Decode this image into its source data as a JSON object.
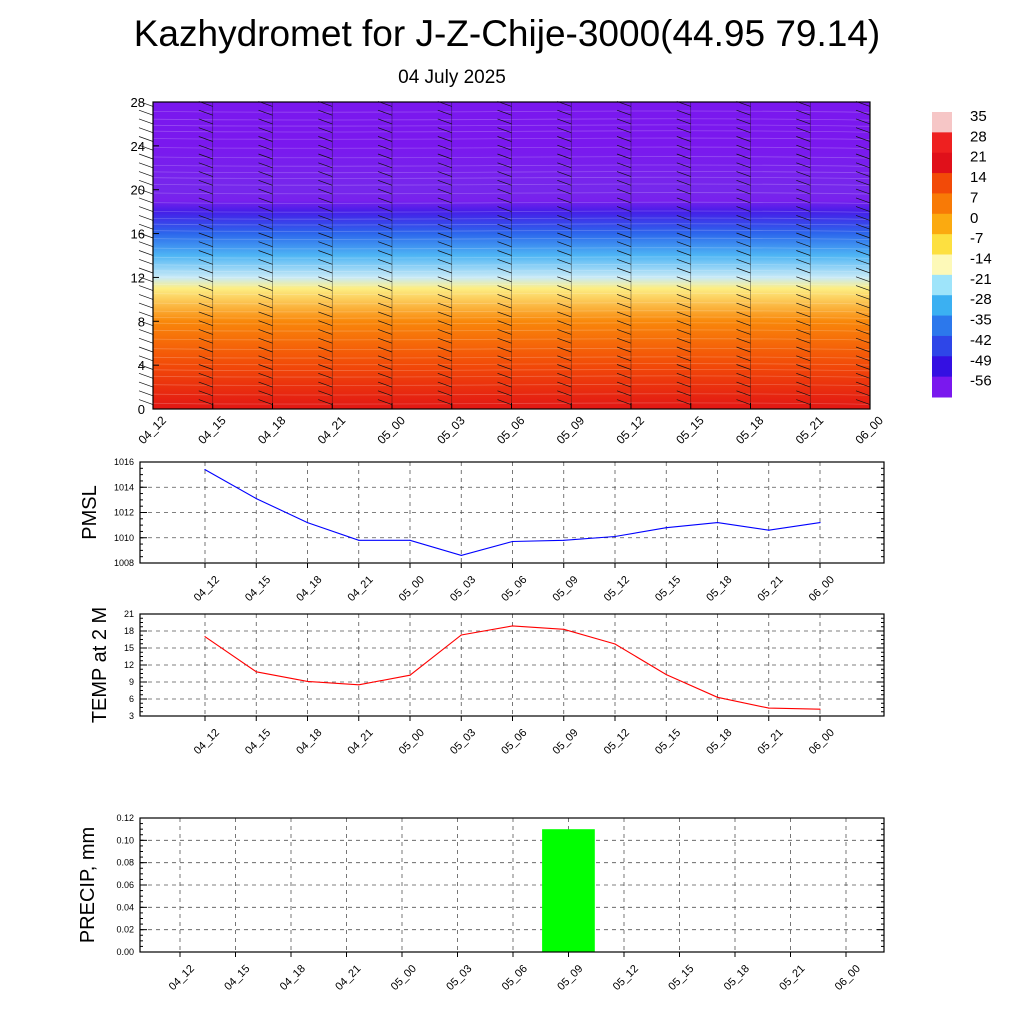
{
  "page": {
    "title": "Kazhydromet for J-Z-Chije-3000(44.95 79.14)",
    "subtitle": "04 July 2025"
  },
  "colorbar": {
    "labels": [
      "35",
      "28",
      "21",
      "14",
      "7",
      "0",
      "-7",
      "-14",
      "-21",
      "-28",
      "-35",
      "-42",
      "-49",
      "-56"
    ],
    "colors": [
      "#f6c6c6",
      "#ee2020",
      "#e0101a",
      "#f24a08",
      "#f87a06",
      "#fbaa10",
      "#fde040",
      "#fdf9b8",
      "#9ee4fa",
      "#3bb0f2",
      "#2c78ec",
      "#2e46e8",
      "#3410e2",
      "#7a18ee"
    ]
  },
  "chart_data": [
    {
      "type": "heatmap",
      "id": "temperature-cross-section",
      "title": "",
      "ylabel": "",
      "xlabel": "",
      "x_ticks": [
        "04_12",
        "04_15",
        "04_18",
        "04_21",
        "05_00",
        "05_03",
        "05_06",
        "05_09",
        "05_12",
        "05_15",
        "05_18",
        "05_21",
        "06_00"
      ],
      "y_ticks": [
        "0",
        "4",
        "8",
        "12",
        "16",
        "20",
        "24",
        "28"
      ],
      "ylim": [
        0,
        28
      ],
      "colorbar_range": [
        -56,
        35
      ],
      "levels": [
        0,
        4,
        8,
        11,
        12,
        14,
        16,
        18,
        19,
        20,
        22,
        24,
        28
      ],
      "values_at_levels": [
        21,
        14,
        5,
        -8,
        -16,
        -25,
        -37,
        -48,
        -58,
        -60,
        -58,
        -56,
        -56
      ],
      "grid": false,
      "wind_barbs": true
    },
    {
      "type": "line",
      "id": "pmsl",
      "ylabel": "PMSL",
      "categories": [
        "04_12",
        "04_15",
        "04_18",
        "04_21",
        "05_00",
        "05_03",
        "05_06",
        "05_09",
        "05_12",
        "05_15",
        "05_18",
        "05_21",
        "06_00"
      ],
      "values": [
        1015.4,
        1013.1,
        1011.2,
        1009.8,
        1009.8,
        1008.6,
        1009.7,
        1009.8,
        1010.1,
        1010.8,
        1011.2,
        1010.6,
        1011.2
      ],
      "ylim": [
        1008,
        1016
      ],
      "y_ticks": [
        "1008",
        "1010",
        "1012",
        "1014",
        "1016"
      ],
      "color": "#0000ff",
      "grid": true
    },
    {
      "type": "line",
      "id": "temp2m",
      "ylabel": "TEMP at 2 M",
      "categories": [
        "04_12",
        "04_15",
        "04_18",
        "04_21",
        "05_00",
        "05_03",
        "05_06",
        "05_09",
        "05_12",
        "05_15",
        "05_18",
        "05_21",
        "06_00"
      ],
      "values": [
        17.0,
        10.8,
        9.1,
        8.5,
        10.2,
        17.3,
        18.9,
        18.3,
        15.7,
        10.3,
        6.3,
        4.4,
        4.2
      ],
      "ylim": [
        3,
        21
      ],
      "y_ticks": [
        "3",
        "6",
        "9",
        "12",
        "15",
        "18",
        "21"
      ],
      "color": "#ff0000",
      "grid": true
    },
    {
      "type": "bar",
      "id": "precip",
      "ylabel": "PRECIP, mm",
      "categories": [
        "04_12",
        "04_15",
        "04_18",
        "04_21",
        "05_00",
        "05_03",
        "05_06",
        "05_09",
        "05_12",
        "05_15",
        "05_18",
        "05_21",
        "06_00"
      ],
      "values": [
        0,
        0,
        0,
        0,
        0,
        0,
        0,
        0.11,
        0,
        0,
        0,
        0,
        0
      ],
      "ylim": [
        0,
        0.12
      ],
      "y_ticks": [
        "0.00",
        "0.02",
        "0.04",
        "0.06",
        "0.08",
        "0.10",
        "0.12"
      ],
      "color": "#00ff00",
      "grid": true
    }
  ]
}
